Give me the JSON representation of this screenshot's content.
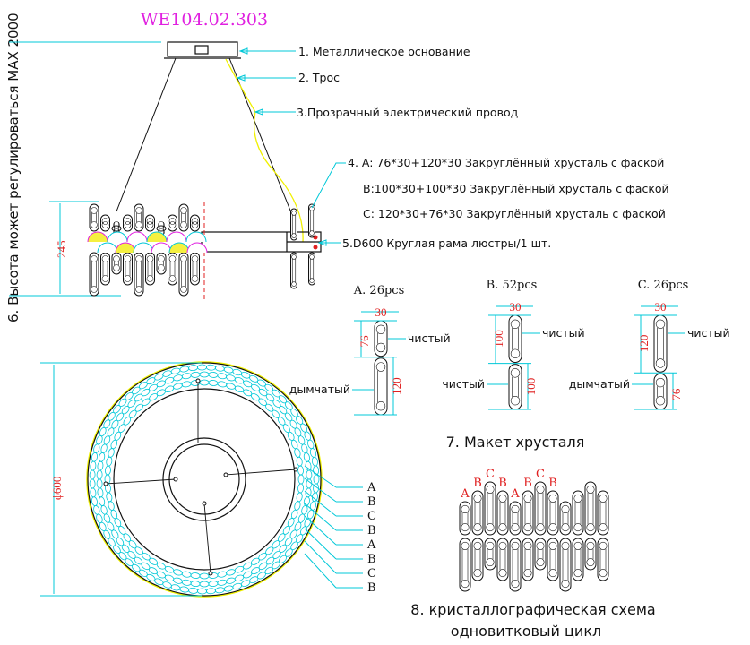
{
  "title": "WE104.02.303",
  "height_note": "6. Высота может регулироваться MAX 2000",
  "dims": {
    "height": "245",
    "diameter": "ϕ600"
  },
  "callouts": [
    "1. Металлическое основание",
    "2. Трос",
    "3.Прозрачный электрический провод",
    "4. A: 76*30+120*30 Закруглённый хрусталь с фаской",
    "B:100*30+100*30 Закруглённый хрусталь с фаской",
    "C: 120*30+76*30 Закруглённый хрусталь с фаской",
    "5.D600 Круглая рама люстры/1 шт."
  ],
  "crystals": [
    {
      "name": "A. 26pcs",
      "width": "30",
      "top": "76",
      "bottom": "120",
      "top_label": "чистый",
      "bottom_label": "дымчатый"
    },
    {
      "name": "B. 52pcs",
      "width": "30",
      "top": "100",
      "bottom": "100",
      "top_label": "чистый",
      "bottom_label": "чистый"
    },
    {
      "name": "C. 26pcs",
      "width": "30",
      "top": "120",
      "bottom": "76",
      "top_label": "чистый",
      "bottom_label": "дымчатый"
    }
  ],
  "section7": "7. Макет хрусталя",
  "ring_labels": [
    "A",
    "B",
    "C",
    "B",
    "A",
    "B",
    "C",
    "B"
  ],
  "sequence_labels": [
    "A",
    "B",
    "C",
    "B",
    "A",
    "B",
    "C",
    "B"
  ],
  "section8": [
    "8. кристаллографическая схема",
    "одновитковый цикл"
  ],
  "colors": {
    "title": "#e020e0",
    "dimension": "#e02020",
    "leader": "#00c8d8",
    "wire": "#f0f000"
  }
}
